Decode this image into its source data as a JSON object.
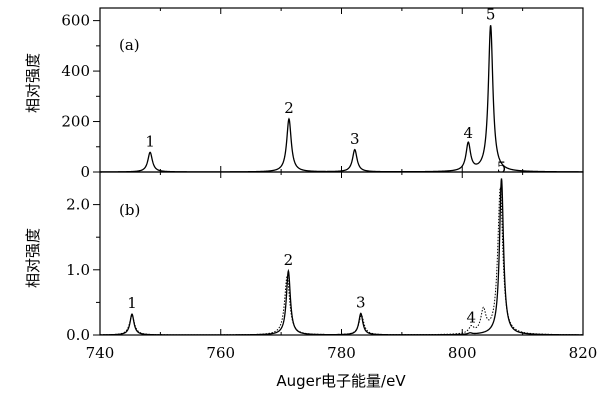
{
  "chart_data": [
    {
      "type": "line",
      "panel_label": "(a)",
      "ylabel": "相对强度",
      "xlabel": "",
      "xlim": [
        740,
        820
      ],
      "ylim": [
        0,
        650
      ],
      "x_ticks": [
        740,
        760,
        780,
        800,
        820
      ],
      "y_ticks": [
        0,
        200,
        400,
        600
      ],
      "y_tick_labels": [
        "0",
        "200",
        "400",
        "600"
      ],
      "grid": false,
      "series": [
        {
          "style": "solid",
          "width_ev": 0.45,
          "peaks": [
            {
              "x": 748.3,
              "y": 78
            },
            {
              "x": 771.3,
              "y": 210
            },
            {
              "x": 782.2,
              "y": 88
            },
            {
              "x": 801.0,
              "y": 110
            },
            {
              "x": 804.7,
              "y": 580
            }
          ]
        }
      ],
      "peak_labels": [
        {
          "text": "1",
          "x": 748.3,
          "y": 78
        },
        {
          "text": "2",
          "x": 771.3,
          "y": 210
        },
        {
          "text": "3",
          "x": 782.2,
          "y": 88
        },
        {
          "text": "4",
          "x": 801.0,
          "y": 110
        },
        {
          "text": "5",
          "x": 804.7,
          "y": 580
        }
      ]
    },
    {
      "type": "line",
      "panel_label": "(b)",
      "ylabel": "相对强度",
      "xlabel": "Auger电子能量/eV",
      "xlim": [
        740,
        820
      ],
      "ylim": [
        0,
        2.5
      ],
      "x_ticks": [
        740,
        760,
        780,
        800,
        820
      ],
      "x_tick_labels": [
        "740",
        "760",
        "780",
        "800",
        "820"
      ],
      "y_ticks": [
        0,
        1,
        2
      ],
      "y_tick_labels": [
        "0.0",
        "1.0",
        "2.0"
      ],
      "grid": false,
      "series": [
        {
          "style": "solid",
          "width_ev": 0.4,
          "peaks": [
            {
              "x": 745.3,
              "y": 0.32
            },
            {
              "x": 771.2,
              "y": 0.98
            },
            {
              "x": 783.2,
              "y": 0.33
            },
            {
              "x": 801.3,
              "y": 0.02
            },
            {
              "x": 806.5,
              "y": 2.4
            }
          ]
        },
        {
          "style": "dotted",
          "width_ev": 0.5,
          "peaks": [
            {
              "x": 745.3,
              "y": 0.3
            },
            {
              "x": 771.0,
              "y": 0.9
            },
            {
              "x": 783.3,
              "y": 0.3
            },
            {
              "x": 801.5,
              "y": 0.1
            },
            {
              "x": 803.5,
              "y": 0.35
            },
            {
              "x": 806.3,
              "y": 2.25
            }
          ]
        }
      ],
      "peak_labels": [
        {
          "text": "1",
          "x": 745.3,
          "y": 0.32
        },
        {
          "text": "2",
          "x": 771.2,
          "y": 0.98
        },
        {
          "text": "3",
          "x": 783.2,
          "y": 0.33
        },
        {
          "text": "4",
          "x": 801.5,
          "y": 0.1
        },
        {
          "text": "5",
          "x": 806.5,
          "y": 2.4
        }
      ]
    }
  ]
}
